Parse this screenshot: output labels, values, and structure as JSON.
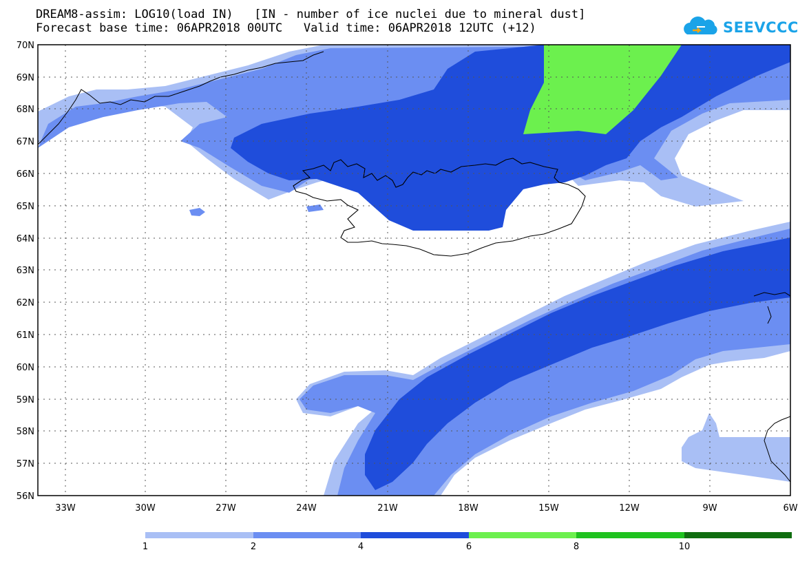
{
  "header": {
    "line1": "DREAM8-assim: LOG10(load IN)   [IN - number of ice nuclei due to mineral dust]",
    "line2": "Forecast base time: 06APR2018 00UTC   Valid time: 06APR2018 12UTC (+12)"
  },
  "logo": {
    "text": "SEEVCCC",
    "color": "#1aa3e8"
  },
  "map": {
    "lat_labels": [
      "70N",
      "69N",
      "68N",
      "67N",
      "66N",
      "65N",
      "64N",
      "63N",
      "62N",
      "61N",
      "60N",
      "59N",
      "58N",
      "57N",
      "56N"
    ],
    "lon_labels": [
      "33W",
      "30W",
      "27W",
      "24W",
      "21W",
      "18W",
      "15W",
      "12W",
      "9W",
      "6W"
    ],
    "region": "Iceland and North Atlantic"
  },
  "legend": {
    "ticks": [
      "1",
      "2",
      "4",
      "6",
      "8",
      "10"
    ],
    "colors": [
      "#a9bff5",
      "#6b8ef2",
      "#1f4ddb",
      "#6cf04e",
      "#1fc21f",
      "#106d10"
    ]
  }
}
